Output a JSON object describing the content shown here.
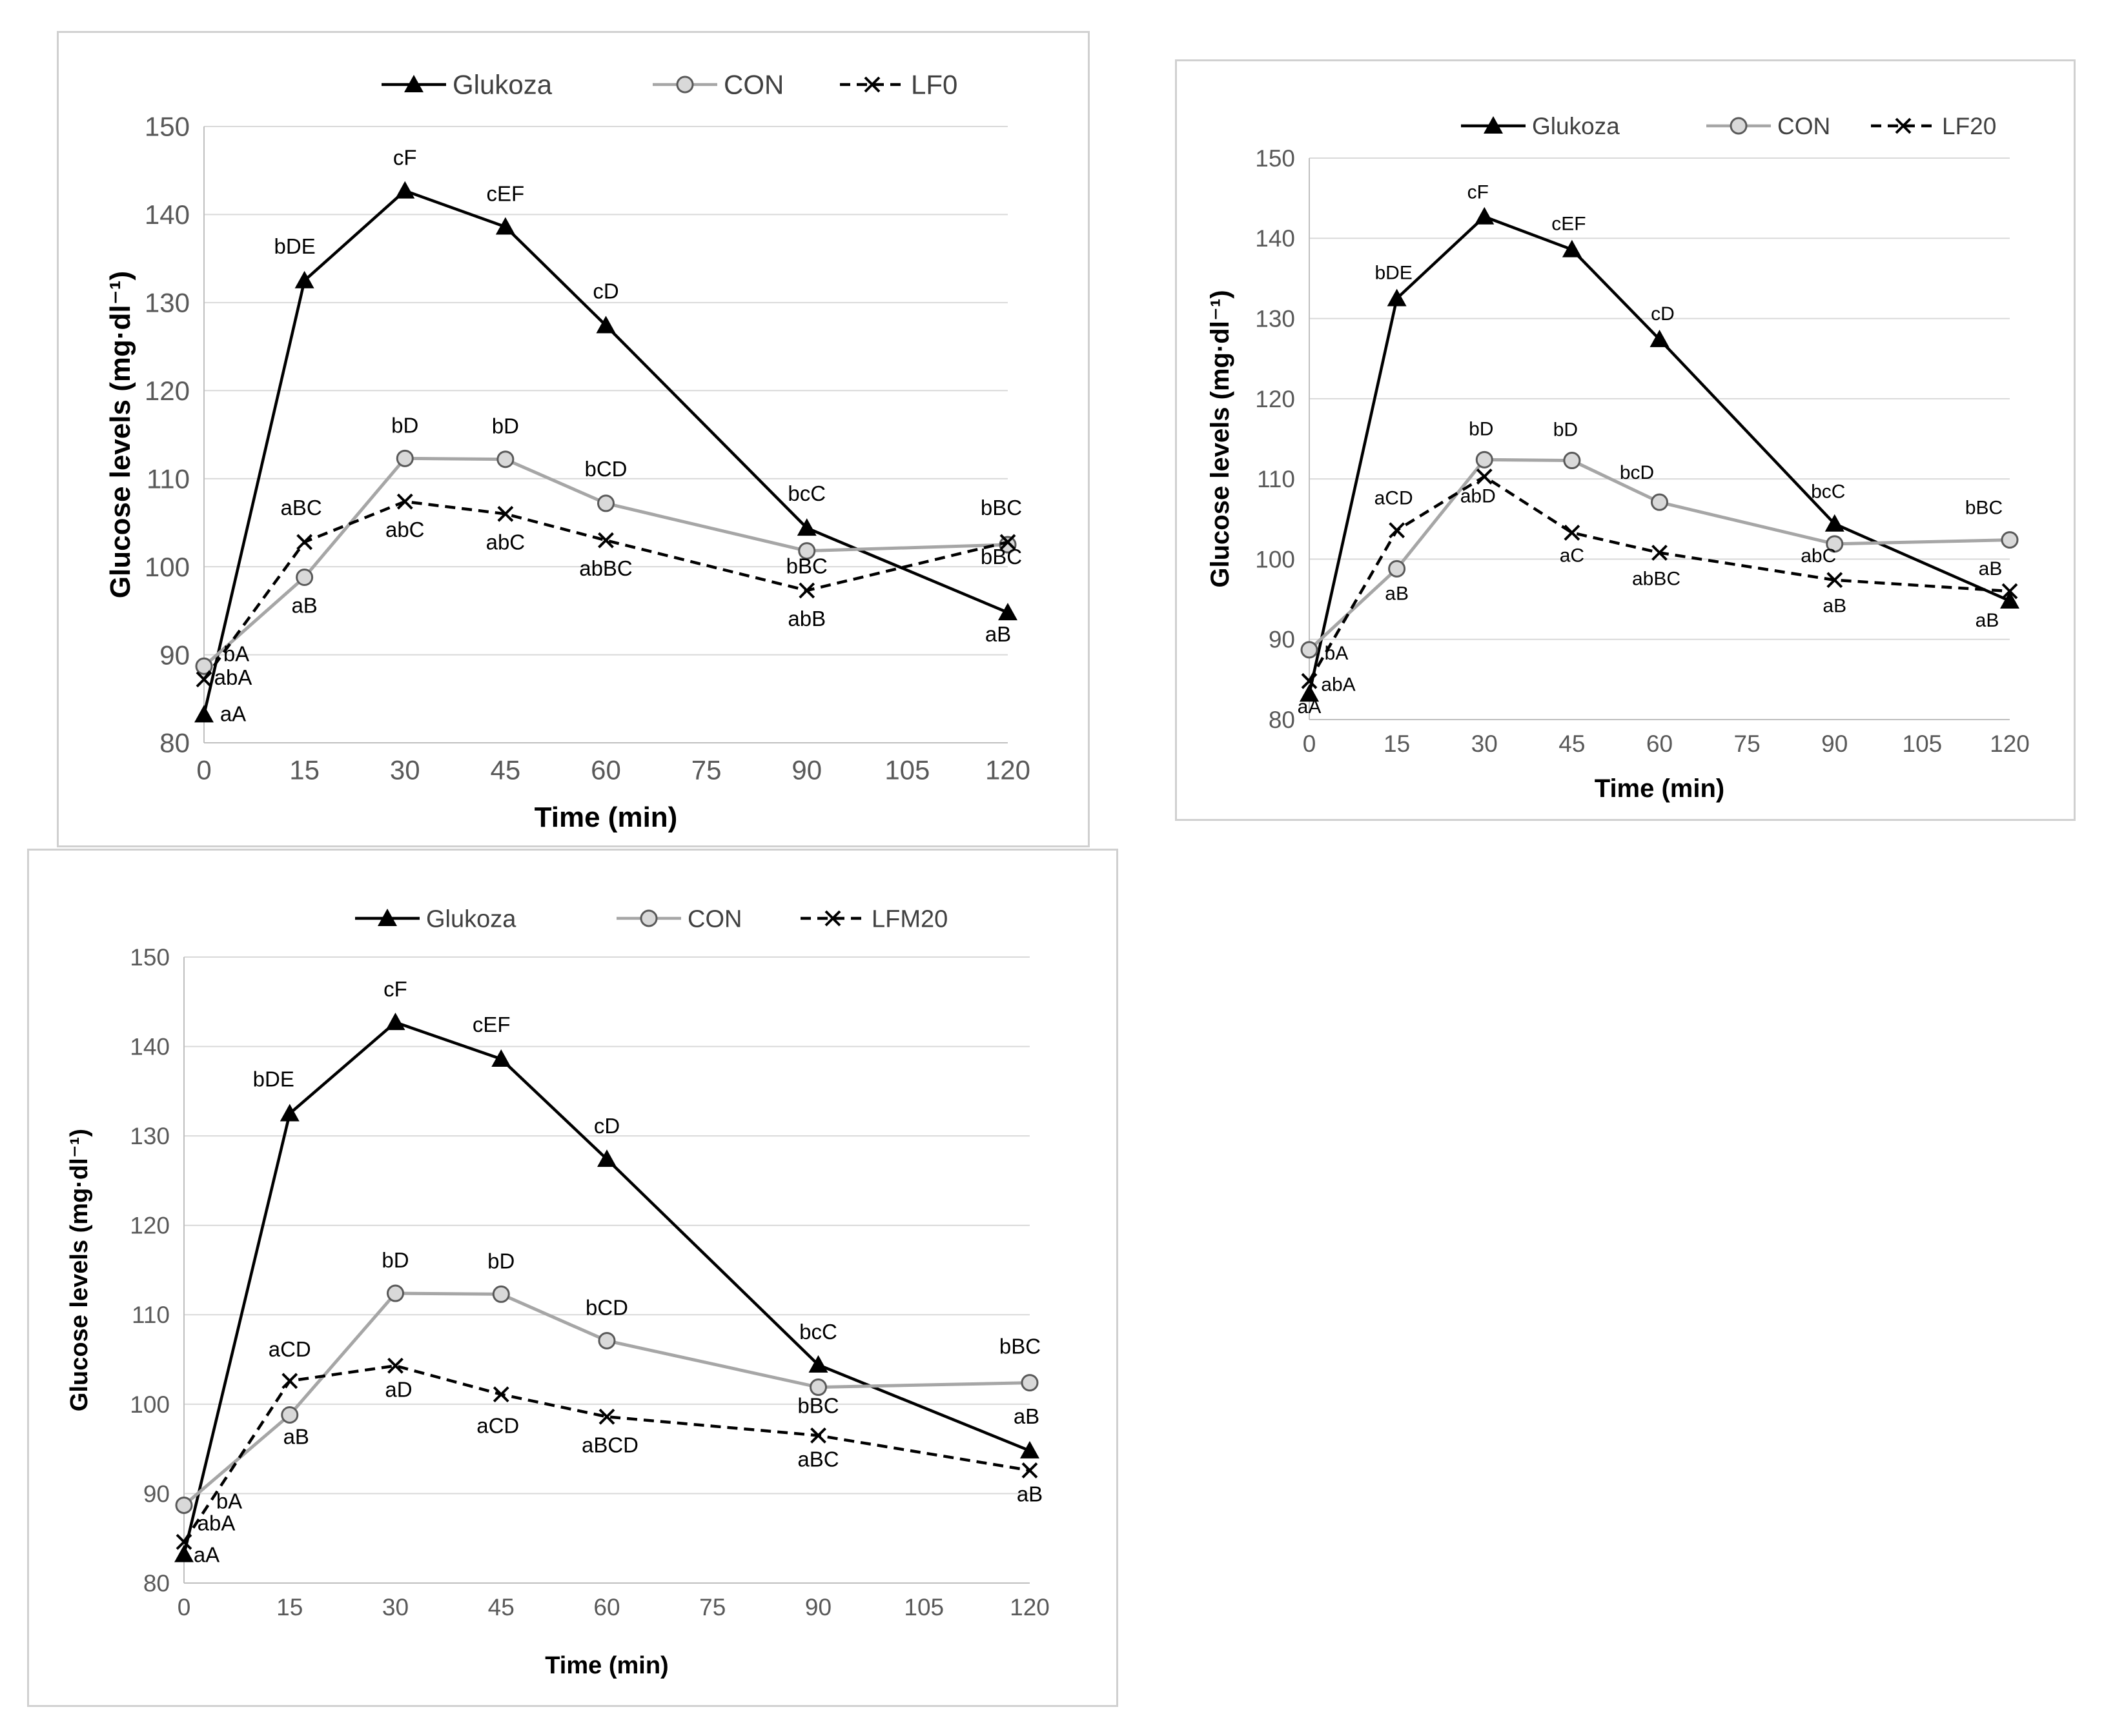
{
  "chart_data": [
    {
      "type": "line",
      "ylabel": "Glucose levels  (mg·dl⁻¹)",
      "xlabel": "Time (min)",
      "x_ticks": [
        0,
        15,
        30,
        45,
        60,
        75,
        90,
        105,
        120
      ],
      "y_ticks": [
        80,
        90,
        100,
        110,
        120,
        130,
        140,
        150
      ],
      "xlim": [
        0,
        120
      ],
      "ylim": [
        80,
        150
      ],
      "grid": true,
      "legend_position": "top",
      "colors": {
        "Glukoza": "#000000",
        "CON": "#a6a6a6",
        "LF0": "#000000"
      },
      "series": [
        {
          "name": "Glukoza",
          "style": "solid-triangle",
          "x": [
            0,
            15,
            30,
            45,
            60,
            90,
            120
          ],
          "values": [
            83.2,
            132.5,
            142.7,
            138.6,
            127.4,
            104.4,
            94.8
          ],
          "labels": [
            "aA",
            "bDE",
            "cF",
            "cEF",
            "cD",
            "bcC",
            "aB"
          ]
        },
        {
          "name": "CON",
          "style": "solid-circle",
          "x": [
            0,
            15,
            30,
            45,
            60,
            90,
            120
          ],
          "values": [
            88.7,
            98.8,
            112.3,
            112.2,
            107.2,
            101.8,
            102.5
          ],
          "labels": [
            "bA",
            "aB",
            "bD",
            "bD",
            "bCD",
            "bBC",
            "bBC"
          ]
        },
        {
          "name": "LF0",
          "style": "dashed-x",
          "x": [
            0,
            15,
            30,
            45,
            60,
            90,
            120
          ],
          "values": [
            87.2,
            102.8,
            107.4,
            106.0,
            103.0,
            97.3,
            102.8
          ],
          "labels": [
            "abA",
            "aBC",
            "abC",
            "abC",
            "abBC",
            "abB",
            "bBC"
          ]
        }
      ]
    },
    {
      "type": "line",
      "ylabel": "Glucose levels  (mg·dl⁻¹)",
      "xlabel": "Time (min)",
      "x_ticks": [
        0,
        15,
        30,
        45,
        60,
        75,
        90,
        105,
        120
      ],
      "y_ticks": [
        80,
        90,
        100,
        110,
        120,
        130,
        140,
        150
      ],
      "xlim": [
        0,
        120
      ],
      "ylim": [
        80,
        150
      ],
      "grid": true,
      "legend_position": "top",
      "colors": {
        "Glukoza": "#000000",
        "CON": "#a6a6a6",
        "LF20": "#000000"
      },
      "series": [
        {
          "name": "Glukoza",
          "style": "solid-triangle",
          "x": [
            0,
            15,
            30,
            45,
            60,
            90,
            120
          ],
          "values": [
            83.2,
            132.5,
            142.7,
            138.6,
            127.4,
            104.4,
            94.8
          ],
          "labels": [
            "aA",
            "bDE",
            "cF",
            "cEF",
            "cD",
            "bcC",
            "aB"
          ]
        },
        {
          "name": "CON",
          "style": "solid-circle",
          "x": [
            0,
            15,
            30,
            45,
            60,
            90,
            120
          ],
          "values": [
            88.7,
            98.8,
            112.4,
            112.3,
            107.1,
            101.9,
            102.4
          ],
          "labels": [
            "bA",
            "aB",
            "bD",
            "bD",
            "bcD",
            "abC",
            "bBC"
          ]
        },
        {
          "name": "LF20",
          "style": "dashed-x",
          "x": [
            0,
            15,
            30,
            45,
            60,
            90,
            120
          ],
          "values": [
            84.8,
            103.6,
            110.3,
            103.3,
            100.8,
            97.4,
            96.0
          ],
          "labels": [
            "abA",
            "aCD",
            "abD",
            "aC",
            "abBC",
            "aB",
            "aB"
          ]
        }
      ]
    },
    {
      "type": "line",
      "ylabel": "Glucose levels  (mg·dl⁻¹)",
      "xlabel": "Time (min)",
      "x_ticks": [
        0,
        15,
        30,
        45,
        60,
        75,
        90,
        105,
        120
      ],
      "y_ticks": [
        80,
        90,
        100,
        110,
        120,
        130,
        140,
        150
      ],
      "xlim": [
        0,
        120
      ],
      "ylim": [
        80,
        150
      ],
      "grid": true,
      "legend_position": "top",
      "colors": {
        "Glukoza": "#000000",
        "CON": "#a6a6a6",
        "LFM20": "#000000"
      },
      "series": [
        {
          "name": "Glukoza",
          "style": "solid-triangle",
          "x": [
            0,
            15,
            30,
            45,
            60,
            90,
            120
          ],
          "values": [
            83.2,
            132.5,
            142.7,
            138.6,
            127.4,
            104.4,
            94.8
          ],
          "labels": [
            "aA",
            "bDE",
            "cF",
            "cEF",
            "cD",
            "bcC",
            "aB"
          ]
        },
        {
          "name": "CON",
          "style": "solid-circle",
          "x": [
            0,
            15,
            30,
            45,
            60,
            90,
            120
          ],
          "values": [
            88.7,
            98.8,
            112.4,
            112.3,
            107.1,
            101.9,
            102.4
          ],
          "labels": [
            "bA",
            "aB",
            "bD",
            "bD",
            "bCD",
            "bBC",
            "bBC"
          ]
        },
        {
          "name": "LFM20",
          "style": "dashed-x",
          "x": [
            0,
            15,
            30,
            45,
            60,
            90,
            120
          ],
          "values": [
            84.6,
            102.6,
            104.3,
            101.1,
            98.6,
            96.5,
            92.6
          ],
          "labels": [
            "abA",
            "aCD",
            "aD",
            "aCD",
            "aBCD",
            "aBC",
            "aB"
          ]
        }
      ]
    }
  ]
}
